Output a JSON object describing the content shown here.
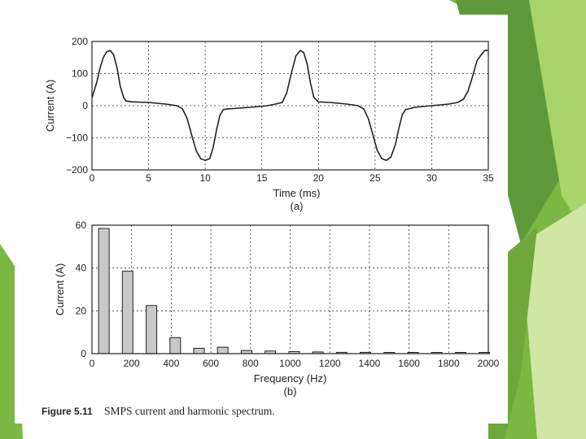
{
  "caption": {
    "label": "Figure 5.11",
    "text": "SMPS current and harmonic spectrum."
  },
  "colors": {
    "slide_background": "#ffffff",
    "accent_green_dark": "#5e9a3a",
    "accent_green": "#7bb843",
    "accent_green_light": "#a9d36b",
    "accent_green_pale": "#cfe7a3",
    "bar_fill": "#c8c8c8"
  },
  "chart_data": [
    {
      "type": "line",
      "panel_label": "(a)",
      "xlabel": "Time (ms)",
      "ylabel": "Current (A)",
      "xlim": [
        0,
        35
      ],
      "ylim": [
        -200,
        200
      ],
      "x_ticks": [
        "0",
        "5",
        "10",
        "15",
        "20",
        "25",
        "30",
        "35"
      ],
      "y_ticks": [
        "200",
        "100",
        "0",
        "−100",
        "−200"
      ],
      "grid": true,
      "series": [
        {
          "x": [
            0,
            0.4,
            0.7,
            1.0,
            1.3,
            1.6,
            1.9,
            2.2,
            2.5,
            2.8,
            3.0,
            3.5,
            5.0,
            6.5,
            7.5,
            8.0,
            8.4,
            8.8,
            9.2,
            9.6,
            10.0,
            10.4,
            10.7,
            11.0,
            11.3,
            11.6,
            12.0,
            14.0,
            15.5,
            16.2,
            16.8,
            17.2,
            17.6,
            18.0,
            18.4,
            18.7,
            19.0,
            19.3,
            19.6,
            20.0,
            21.0,
            22.5,
            23.5,
            24.0,
            24.4,
            24.8,
            25.2,
            25.6,
            26.0,
            26.4,
            26.8,
            27.1,
            27.4,
            27.7,
            28.0,
            28.5,
            30.0,
            31.5,
            32.3,
            32.8,
            33.2,
            33.6,
            34.0,
            34.4,
            34.7,
            35.0
          ],
          "y": [
            25,
            70,
            115,
            150,
            168,
            172,
            160,
            120,
            60,
            25,
            15,
            12,
            10,
            5,
            0,
            -10,
            -40,
            -90,
            -140,
            -165,
            -170,
            -165,
            -130,
            -75,
            -30,
            -12,
            -10,
            -5,
            0,
            5,
            10,
            40,
            100,
            155,
            172,
            165,
            130,
            70,
            25,
            12,
            10,
            5,
            0,
            -10,
            -40,
            -90,
            -140,
            -165,
            -170,
            -160,
            -120,
            -70,
            -28,
            -12,
            -10,
            -5,
            0,
            5,
            10,
            20,
            45,
            90,
            140,
            160,
            172,
            172
          ]
        }
      ]
    },
    {
      "type": "bar",
      "panel_label": "(b)",
      "xlabel": "Frequency (Hz)",
      "ylabel": "Current (A)",
      "xlim": [
        0,
        2000
      ],
      "ylim": [
        0,
        60
      ],
      "x_ticks": [
        "0",
        "200",
        "400",
        "600",
        "800",
        "1000",
        "1200",
        "1400",
        "1600",
        "1800",
        "2000"
      ],
      "y_ticks": [
        "60",
        "40",
        "20",
        "0"
      ],
      "grid": true,
      "bars": [
        {
          "x": 60,
          "value": 58.5
        },
        {
          "x": 180,
          "value": 38.5
        },
        {
          "x": 300,
          "value": 22.5
        },
        {
          "x": 420,
          "value": 7.5
        },
        {
          "x": 540,
          "value": 2.5
        },
        {
          "x": 660,
          "value": 3.0
        },
        {
          "x": 780,
          "value": 1.5
        },
        {
          "x": 900,
          "value": 1.2
        },
        {
          "x": 1020,
          "value": 1.0
        },
        {
          "x": 1140,
          "value": 0.8
        },
        {
          "x": 1260,
          "value": 0.6
        },
        {
          "x": 1380,
          "value": 0.6
        },
        {
          "x": 1500,
          "value": 0.4
        },
        {
          "x": 1620,
          "value": 0.4
        },
        {
          "x": 1740,
          "value": 0.4
        },
        {
          "x": 1860,
          "value": 0.3
        },
        {
          "x": 1980,
          "value": 0.3
        }
      ]
    }
  ]
}
